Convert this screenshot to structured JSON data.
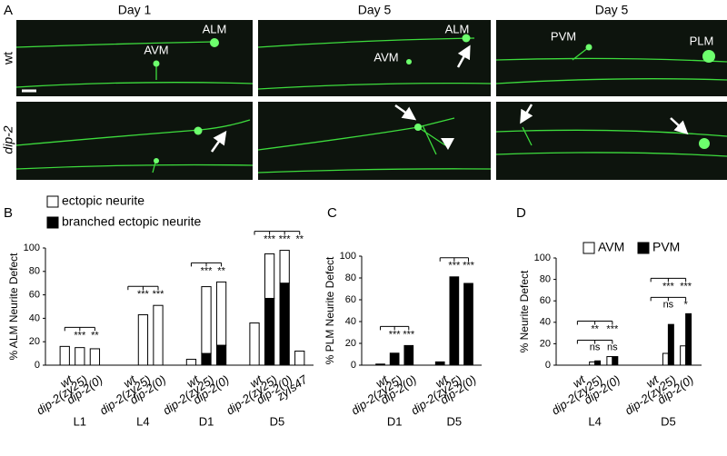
{
  "panel_a": {
    "label": "A",
    "columns": [
      "Day 1",
      "Day 5",
      "Day 5"
    ],
    "rows": [
      "wt",
      "dip-2"
    ],
    "image_labels": [
      "ALM",
      "AVM",
      "ALM",
      "AVM",
      "PVM",
      "PLM"
    ]
  },
  "chart_data": [
    {
      "type": "bar",
      "panel": "B",
      "stacked": true,
      "y_label": "% ALM Neurite Defect",
      "ylim": [
        0,
        100
      ],
      "yticks": [
        0,
        20,
        40,
        60,
        80,
        100
      ],
      "groups": [
        {
          "name": "L1",
          "categories": [
            "wt",
            "dip-2(zy25)",
            "dip-2(0)"
          ]
        },
        {
          "name": "L4",
          "categories": [
            "wt",
            "dip-2(zy25)",
            "dip-2(0)"
          ]
        },
        {
          "name": "D1",
          "categories": [
            "wt",
            "dip-2(zy25)",
            "dip-2(0)"
          ]
        },
        {
          "name": "D5",
          "categories": [
            "wt",
            "dip-2(zy25)",
            "dip-2(0)",
            "zyIs47"
          ]
        }
      ],
      "series": [
        {
          "name": "branched ectopic neurite",
          "color": "#000000",
          "values": [
            0,
            0,
            0,
            0,
            0,
            0,
            0,
            10,
            17,
            0,
            57,
            70,
            0
          ]
        },
        {
          "name": "ectopic neurite",
          "color": "#ffffff",
          "values": [
            16,
            15,
            14,
            0,
            43,
            51,
            5,
            57,
            54,
            36,
            38,
            28,
            12
          ]
        }
      ],
      "significance": [
        null,
        "***",
        "**",
        null,
        "***",
        "***",
        null,
        "***",
        "**",
        null,
        "***",
        "***",
        "**"
      ]
    },
    {
      "type": "bar",
      "panel": "C",
      "stacked": true,
      "y_label": "% PLM Neurite Defect",
      "ylim": [
        0,
        100
      ],
      "yticks": [
        0,
        20,
        40,
        60,
        80,
        100
      ],
      "groups": [
        {
          "name": "D1",
          "categories": [
            "wt",
            "dip-2(zy25)",
            "dip-2(0)"
          ]
        },
        {
          "name": "D5",
          "categories": [
            "wt",
            "dip-2(zy25)",
            "dip-2(0)"
          ]
        }
      ],
      "series": [
        {
          "color": "#000000",
          "values": [
            1,
            11,
            18,
            3,
            81,
            75
          ]
        }
      ],
      "significance": [
        null,
        "***",
        "***",
        null,
        "***",
        "***"
      ]
    },
    {
      "type": "bar",
      "panel": "D",
      "stacked": false,
      "y_label": "% Neurite Defect",
      "ylim": [
        0,
        100
      ],
      "yticks": [
        0,
        20,
        40,
        60,
        80,
        100
      ],
      "groups": [
        {
          "name": "L4",
          "categories": [
            "wt",
            "dip-2(zy25)",
            "dip-2(0)"
          ]
        },
        {
          "name": "D5",
          "categories": [
            "wt",
            "dip-2(zy25)",
            "dip-2(0)"
          ]
        }
      ],
      "series": [
        {
          "name": "AVM",
          "color": "#ffffff",
          "values": [
            0,
            3,
            8,
            0,
            11,
            18
          ]
        },
        {
          "name": "PVM",
          "color": "#000000",
          "values": [
            0,
            4,
            8,
            0,
            38,
            48
          ]
        }
      ],
      "significance": [
        null,
        "**",
        "***",
        null,
        "***",
        "***"
      ],
      "significance_lower": [
        null,
        "ns",
        "ns",
        null,
        "ns",
        "*"
      ]
    }
  ]
}
